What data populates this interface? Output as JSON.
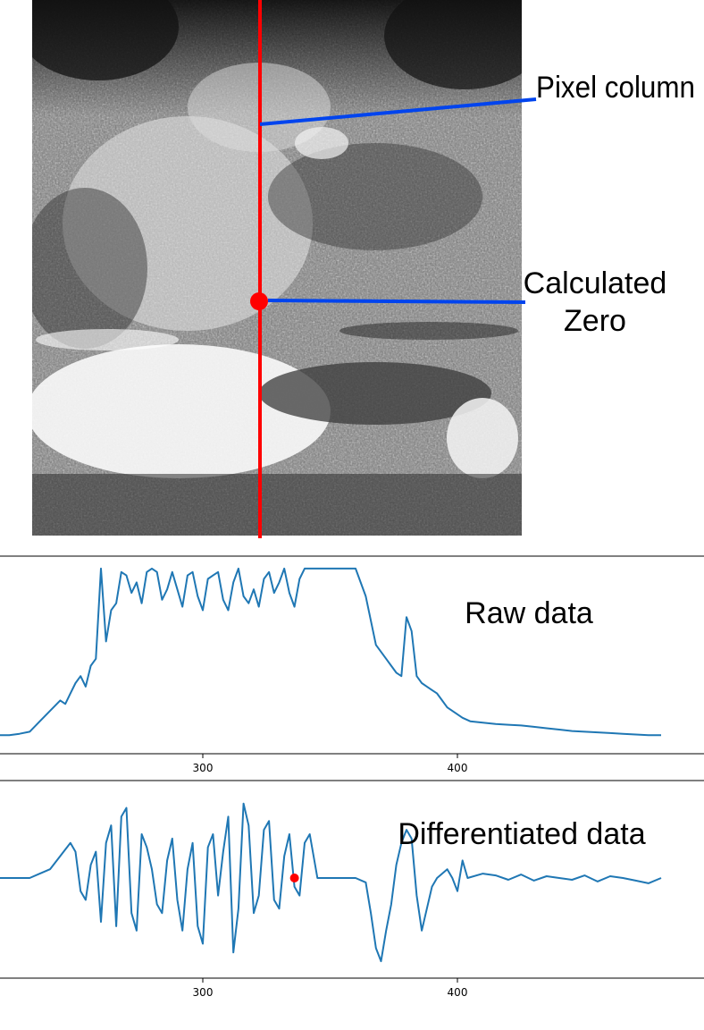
{
  "colors": {
    "series": "#1f77b4",
    "marker": "#ff0000",
    "column_line": "#ff0000",
    "pointer": "#0044ee"
  },
  "image_panel": {
    "annotation_pixel_column": "Pixel column",
    "annotation_calculated_zero_line1": "Calculated",
    "annotation_calculated_zero_line2": "Zero"
  },
  "chart_data": [
    {
      "type": "line",
      "annotation": "Raw data",
      "xlim": [
        220,
        485
      ],
      "ylim": [
        0,
        255
      ],
      "x_ticks": [
        300,
        400
      ],
      "tick_labels": [
        "300",
        "400"
      ],
      "series": [
        {
          "x": [
            220,
            224,
            228,
            232,
            236,
            240,
            244,
            246,
            248,
            250,
            252,
            254,
            256,
            258,
            260,
            262,
            264,
            266,
            268,
            270,
            272,
            274,
            276,
            278,
            280,
            282,
            284,
            286,
            288,
            290,
            292,
            294,
            296,
            298,
            300,
            302,
            304,
            306,
            308,
            310,
            312,
            314,
            316,
            318,
            320,
            322,
            324,
            326,
            328,
            330,
            332,
            334,
            336,
            338,
            340,
            345,
            350,
            355,
            360,
            364,
            368,
            372,
            374,
            376,
            378,
            380,
            382,
            384,
            386,
            388,
            390,
            392,
            394,
            396,
            398,
            400,
            402,
            405,
            410,
            415,
            420,
            425,
            430,
            435,
            440,
            445,
            450,
            455,
            460,
            465,
            470,
            475,
            480
          ],
          "y": [
            10,
            10,
            12,
            15,
            30,
            45,
            60,
            55,
            70,
            85,
            95,
            80,
            110,
            120,
            250,
            145,
            190,
            200,
            245,
            240,
            215,
            230,
            200,
            245,
            250,
            245,
            205,
            220,
            245,
            220,
            195,
            240,
            245,
            210,
            190,
            235,
            240,
            245,
            205,
            190,
            230,
            250,
            210,
            200,
            220,
            195,
            235,
            245,
            215,
            230,
            250,
            215,
            195,
            235,
            250,
            250,
            250,
            250,
            250,
            210,
            140,
            120,
            110,
            100,
            95,
            180,
            160,
            95,
            85,
            80,
            75,
            70,
            60,
            50,
            45,
            40,
            35,
            30,
            28,
            26,
            25,
            24,
            22,
            20,
            18,
            16,
            15,
            14,
            13,
            12,
            11,
            10,
            10
          ]
        }
      ]
    },
    {
      "type": "line",
      "annotation": "Differentiated data",
      "xlim": [
        220,
        485
      ],
      "ylim": [
        -100,
        100
      ],
      "x_ticks": [
        300,
        400
      ],
      "tick_labels": [
        "300",
        "400"
      ],
      "series": [
        {
          "x": [
            220,
            224,
            228,
            232,
            236,
            240,
            244,
            248,
            250,
            252,
            254,
            256,
            258,
            260,
            262,
            264,
            266,
            268,
            270,
            272,
            274,
            276,
            278,
            280,
            282,
            284,
            286,
            288,
            290,
            292,
            294,
            296,
            298,
            300,
            302,
            304,
            306,
            308,
            310,
            312,
            314,
            316,
            318,
            320,
            322,
            324,
            326,
            328,
            330,
            332,
            334,
            336,
            338,
            340,
            342,
            345,
            350,
            355,
            360,
            364,
            366,
            368,
            370,
            372,
            374,
            376,
            378,
            380,
            382,
            384,
            386,
            388,
            390,
            392,
            394,
            396,
            398,
            400,
            402,
            404,
            410,
            415,
            420,
            425,
            430,
            435,
            440,
            445,
            450,
            455,
            460,
            465,
            470,
            475,
            480
          ],
          "y": [
            0,
            0,
            0,
            0,
            5,
            10,
            25,
            40,
            30,
            -15,
            -25,
            15,
            30,
            -50,
            40,
            60,
            -55,
            70,
            80,
            -40,
            -60,
            50,
            35,
            10,
            -30,
            -40,
            20,
            45,
            -25,
            -60,
            10,
            40,
            -55,
            -75,
            35,
            50,
            -20,
            30,
            70,
            -85,
            -35,
            85,
            60,
            -40,
            -20,
            55,
            65,
            -25,
            -35,
            25,
            50,
            -10,
            -20,
            40,
            50,
            0,
            0,
            0,
            0,
            -5,
            -40,
            -80,
            -95,
            -60,
            -30,
            15,
            40,
            55,
            45,
            -20,
            -60,
            -35,
            -10,
            0,
            5,
            10,
            0,
            -15,
            20,
            0,
            5,
            3,
            -2,
            4,
            -3,
            2,
            0,
            -2,
            3,
            -4,
            2,
            0,
            -3,
            -6,
            0
          ]
        }
      ],
      "marker": {
        "x": 336,
        "y": 0
      }
    }
  ]
}
